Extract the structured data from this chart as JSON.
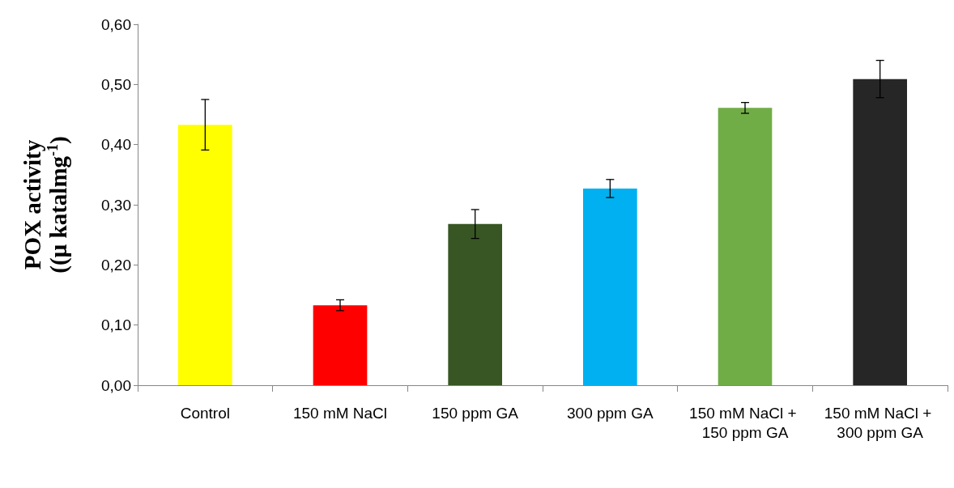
{
  "chart_data": {
    "type": "bar",
    "ylabel": "POX activity\n((µ katalmg$^{-1}$)",
    "categories": [
      "Control",
      "150 mM NaCl",
      "150 ppm GA",
      "300 ppm GA",
      "150 mM NaCl + 150 ppm GA",
      "150 mM NaCl + 300 ppm GA"
    ],
    "values": [
      0.433,
      0.133,
      0.268,
      0.327,
      0.461,
      0.509
    ],
    "colors": [
      "#ffff00",
      "#ff0000",
      "#375623",
      "#00b0f0",
      "#70ad47",
      "#262626"
    ],
    "errors": [
      0.042,
      0.009,
      0.024,
      0.015,
      0.009,
      0.031
    ],
    "ylim": [
      0,
      0.6
    ],
    "yticks": [
      {
        "value": 0,
        "label": "0,00"
      },
      {
        "value": 0.1,
        "label": "0,10"
      },
      {
        "value": 0.2,
        "label": "0,20"
      },
      {
        "value": 0.3,
        "label": "0,30"
      },
      {
        "value": 0.4,
        "label": "0,40"
      },
      {
        "value": 0.5,
        "label": "0,50"
      },
      {
        "value": 0.6,
        "label": "0,60"
      }
    ],
    "grid": false
  }
}
